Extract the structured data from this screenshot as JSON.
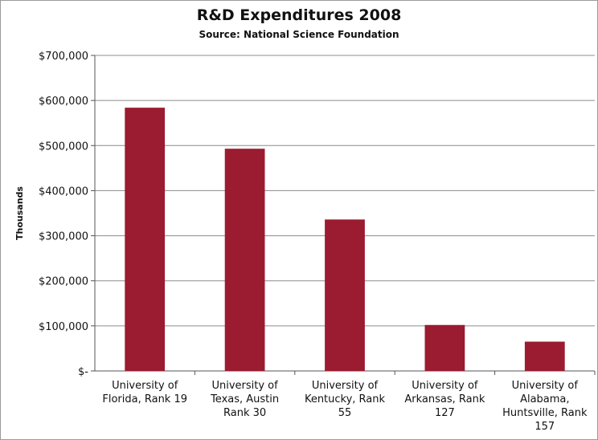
{
  "chart_data": {
    "type": "bar",
    "title": "R&D Expenditures 2008",
    "subtitle": "Source: National Science Foundation",
    "ylabel": "Thousands",
    "xlabel": "",
    "categories": [
      [
        "University of",
        "Florida, Rank 19"
      ],
      [
        "University of",
        "Texas, Austin",
        "Rank 30"
      ],
      [
        "University of",
        "Kentucky, Rank",
        "55"
      ],
      [
        "University of",
        "Arkansas, Rank",
        "127"
      ],
      [
        "University of",
        "Alabama,",
        "Huntsville, Rank",
        "157"
      ]
    ],
    "values": [
      584000,
      493000,
      336000,
      102000,
      65000
    ],
    "ylim": [
      0,
      700000
    ],
    "yticks": [
      0,
      100000,
      200000,
      300000,
      400000,
      500000,
      600000,
      700000
    ],
    "ytick_labels": [
      "$-",
      "$100,000",
      "$200,000",
      "$300,000",
      "$400,000",
      "$500,000",
      "$600,000",
      "$700,000"
    ],
    "grid": true,
    "legend": "none",
    "bar_color": "#9b1b30"
  }
}
